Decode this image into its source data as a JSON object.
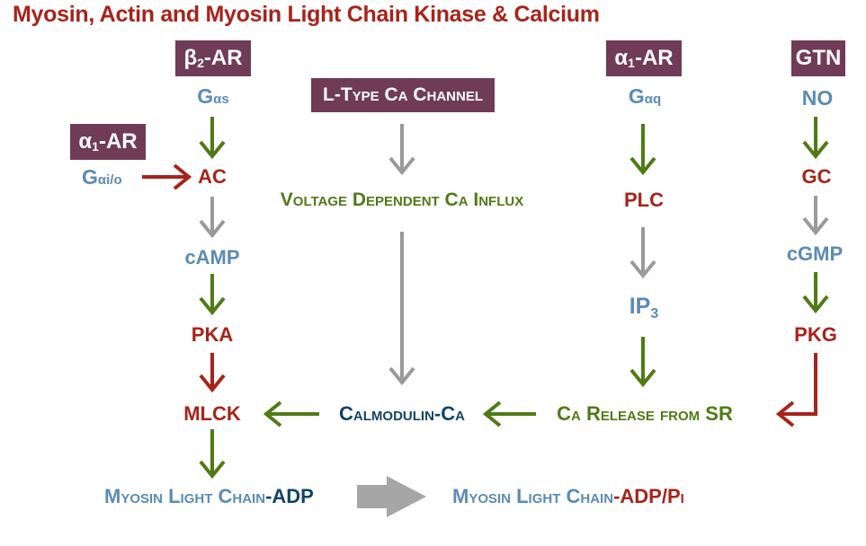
{
  "title": "Myosin, Actin and Myosin Light Chain Kinase & Calcium",
  "colors": {
    "title_red": "#a8231a",
    "box_purple": "#6f3b57",
    "light_blue": "#5b8bb5",
    "dark_red": "#a8231a",
    "green": "#4f7b16",
    "navy": "#114466",
    "arrow_gray": "#9a9a9a"
  },
  "boxes": {
    "beta2_ar": {
      "main": "β",
      "sub": "2",
      "rest": "-AR"
    },
    "alpha1_ar_left": {
      "main": "α",
      "sub": "1",
      "rest": "-AR"
    },
    "l_type_channel": "L-Type Ca Channel",
    "alpha1_ar_right": {
      "main": "α",
      "sub": "1",
      "rest": "-AR"
    },
    "gtn": "GTN"
  },
  "left_column": {
    "g_as": {
      "main": "G",
      "sub": "αs"
    },
    "g_aio": {
      "main": "G",
      "sub": "αi/o"
    },
    "ac": "AC",
    "camp": "cAMP",
    "pka": "PKA",
    "mlck": "MLCK"
  },
  "center_column": {
    "voltage_influx": "Voltage Dependent Ca Influx",
    "calmodulin": "Calmodulin-Ca"
  },
  "right_column": {
    "g_aq": {
      "main": "G",
      "sub": "αq"
    },
    "plc": "PLC",
    "ip3": {
      "main": "IP",
      "sub": "3"
    },
    "ca_release": "Ca Release from SR"
  },
  "far_right_column": {
    "no": "NO",
    "gc": "GC",
    "cgmp": "cGMP",
    "pkg": "PKG"
  },
  "bottom": {
    "mlc_adp_a": "Myosin Light Chain",
    "mlc_adp_b": "-ADP",
    "mlc_adppi_a": "Myosin Light Chain",
    "mlc_adppi_b": "-ADP/Pi"
  }
}
